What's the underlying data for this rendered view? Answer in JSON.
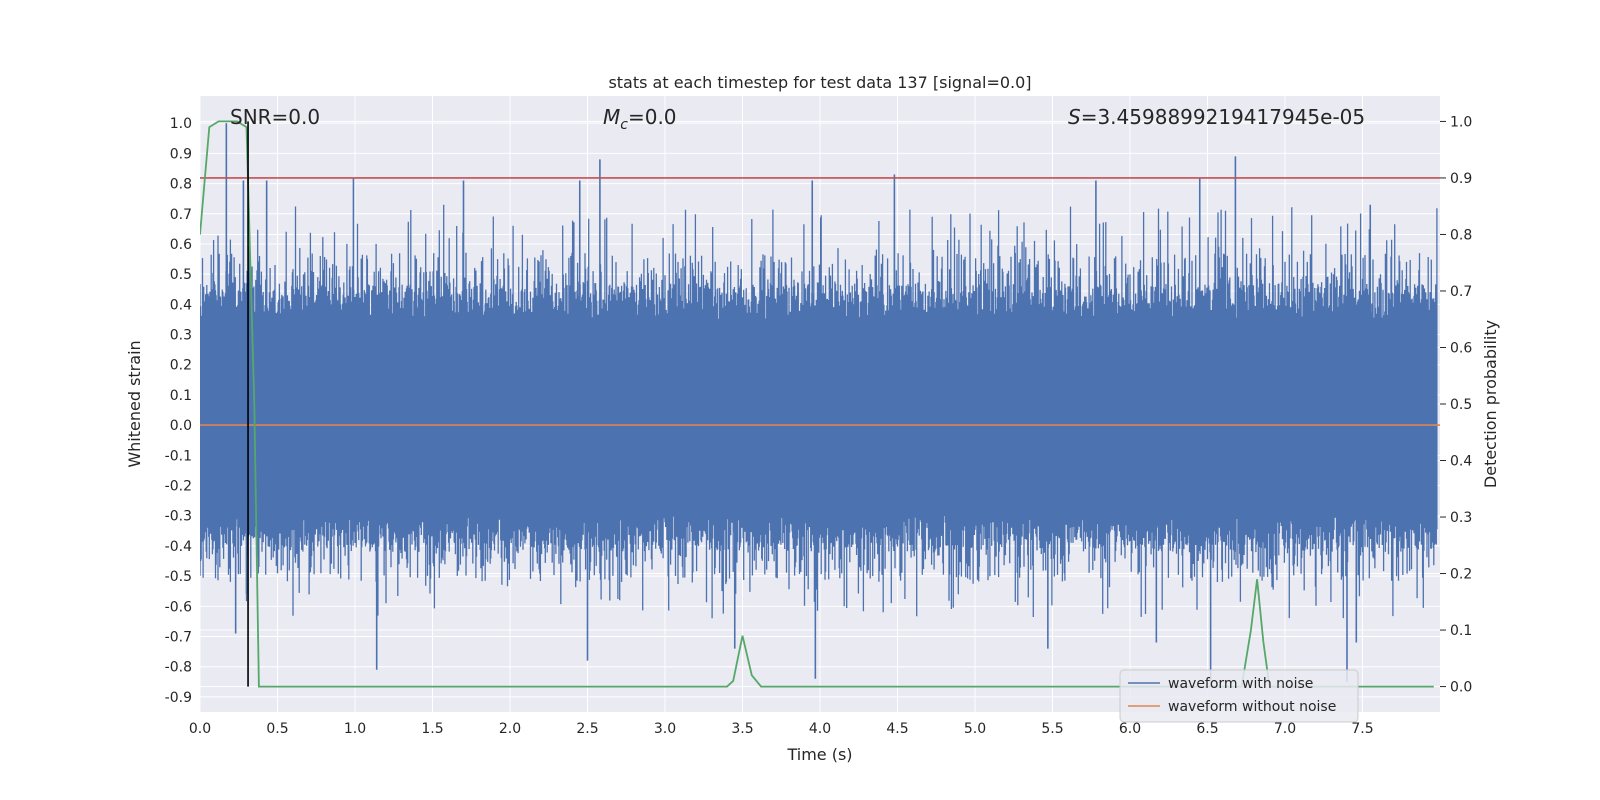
{
  "chart_data": {
    "type": "line",
    "title": "stats at each timestep for test data 137 [signal=0.0]",
    "xlabel": "Time (s)",
    "ylabel": "Whitened strain",
    "y2label": "Detection probability",
    "xlim": [
      0.0,
      8.0
    ],
    "ylim": [
      -0.95,
      1.09
    ],
    "y2lim": [
      -0.045,
      1.045
    ],
    "xticks": [
      "0.0",
      "0.5",
      "1.0",
      "1.5",
      "2.0",
      "2.5",
      "3.0",
      "3.5",
      "4.0",
      "4.5",
      "5.0",
      "5.5",
      "6.0",
      "6.5",
      "7.0",
      "7.5"
    ],
    "yticks": [
      "-0.9",
      "-0.8",
      "-0.7",
      "-0.6",
      "-0.5",
      "-0.4",
      "-0.3",
      "-0.2",
      "-0.1",
      "0.0",
      "0.1",
      "0.2",
      "0.3",
      "0.4",
      "0.5",
      "0.6",
      "0.7",
      "0.8",
      "0.9",
      "1.0"
    ],
    "y2ticks": [
      "0.0",
      "0.1",
      "0.2",
      "0.3",
      "0.4",
      "0.5",
      "0.6",
      "0.7",
      "0.8",
      "0.9",
      "1.0"
    ],
    "grid": true,
    "annotations": {
      "snr": "SNR=0.0",
      "mc_sym": "M",
      "mc_sub": "c",
      "mc_val": "=0.0",
      "s_sym": "S",
      "s_val": "=3.4598899219417945e-05"
    },
    "legend": {
      "placement": "lower-right",
      "entries": [
        "waveform with noise",
        "waveform without noise"
      ]
    },
    "colors": {
      "noise": "#4c72b0",
      "clean": "#dd8452",
      "probability": "#55a868",
      "threshold": "#c44e52",
      "marker": "#000000",
      "background": "#eaeaf2",
      "grid": "#ffffff"
    },
    "threshold_probability": 0.9,
    "marker_time": 0.31,
    "noise_envelope": {
      "note_values": "strain",
      "dense_band": [
        -0.3,
        0.35
      ],
      "upper_spikes": [
        [
          0.17,
          1.0
        ],
        [
          0.28,
          0.81
        ],
        [
          0.43,
          0.81
        ],
        [
          0.99,
          0.82
        ],
        [
          1.7,
          0.81
        ],
        [
          2.45,
          0.81
        ],
        [
          2.58,
          0.88
        ],
        [
          3.95,
          0.81
        ],
        [
          4.48,
          0.83
        ],
        [
          5.78,
          0.81
        ],
        [
          6.45,
          0.82
        ],
        [
          6.68,
          0.89
        ],
        [
          7.55,
          0.73
        ]
      ],
      "lower_spikes": [
        [
          0.23,
          -0.69
        ],
        [
          0.3,
          -0.56
        ],
        [
          1.14,
          -0.81
        ],
        [
          2.5,
          -0.78
        ],
        [
          3.45,
          -0.74
        ],
        [
          3.97,
          -0.84
        ],
        [
          5.47,
          -0.74
        ],
        [
          6.17,
          -0.72
        ],
        [
          6.52,
          -0.85
        ],
        [
          7.4,
          -0.85
        ],
        [
          7.46,
          -0.72
        ]
      ]
    },
    "series": [
      {
        "name": "waveform without noise",
        "x": [
          0.0,
          8.0
        ],
        "y": [
          0.0,
          0.0
        ]
      },
      {
        "x": [
          0.0,
          0.06,
          0.12,
          0.18,
          0.24,
          0.3,
          0.35,
          0.38,
          0.45,
          3.4,
          3.44,
          3.5,
          3.56,
          3.62,
          3.8,
          6.72,
          6.78,
          6.82,
          6.86,
          6.9,
          7.96
        ],
        "y": [
          0.8,
          0.99,
          1.0,
          1.0,
          1.0,
          0.99,
          0.5,
          0.0,
          0.0,
          0.0,
          0.01,
          0.09,
          0.02,
          0.0,
          0.0,
          0.0,
          0.1,
          0.19,
          0.08,
          0.0,
          0.0
        ]
      }
    ]
  }
}
